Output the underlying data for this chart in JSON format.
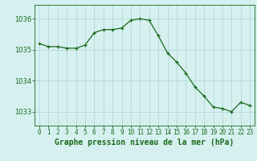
{
  "hours": [
    0,
    1,
    2,
    3,
    4,
    5,
    6,
    7,
    8,
    9,
    10,
    11,
    12,
    13,
    14,
    15,
    16,
    17,
    18,
    19,
    20,
    21,
    22,
    23
  ],
  "pressure": [
    1035.2,
    1035.1,
    1035.1,
    1035.05,
    1035.05,
    1035.15,
    1035.55,
    1035.65,
    1035.65,
    1035.7,
    1035.95,
    1036.0,
    1035.95,
    1035.45,
    1034.9,
    1034.6,
    1034.25,
    1033.8,
    1033.5,
    1033.15,
    1033.1,
    1033.0,
    1033.3,
    1033.2
  ],
  "line_color": "#1a6b1a",
  "marker": "+",
  "bg_color": "#d6f0f0",
  "grid_color": "#b0d8d8",
  "xlabel": "Graphe pression niveau de la mer (hPa)",
  "xlabel_color": "#1a6b1a",
  "tick_color": "#1a6b1a",
  "yticks": [
    1033,
    1034,
    1035,
    1036
  ],
  "ylim": [
    1032.55,
    1036.45
  ],
  "xlim": [
    -0.5,
    23.5
  ],
  "tick_fontsize": 5.5,
  "ylabel_fontsize": 6.0,
  "xlabel_fontsize": 7.0
}
